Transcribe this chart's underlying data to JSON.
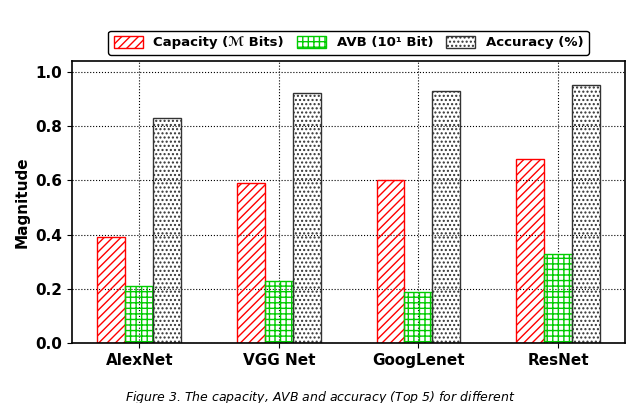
{
  "categories": [
    "AlexNet",
    "VGG Net",
    "GoogLenet",
    "ResNet"
  ],
  "capacity": [
    0.39,
    0.59,
    0.6,
    0.68
  ],
  "avb": [
    0.21,
    0.23,
    0.19,
    0.33
  ],
  "accuracy": [
    0.83,
    0.92,
    0.93,
    0.95
  ],
  "bar_width": 0.2,
  "ylim": [
    0.0,
    1.04
  ],
  "yticks": [
    0.0,
    0.2,
    0.4,
    0.6,
    0.8,
    1.0
  ],
  "ylabel": "Magnitude",
  "legend_labels": [
    "Capacity (ℳ Bits)",
    "AVB (10¹ Bit)",
    "Accuracy (%)"
  ],
  "capacity_color": "#FF0000",
  "avb_color": "#00CC00",
  "accuracy_color": "#333333",
  "background_color": "#FFFFFF"
}
